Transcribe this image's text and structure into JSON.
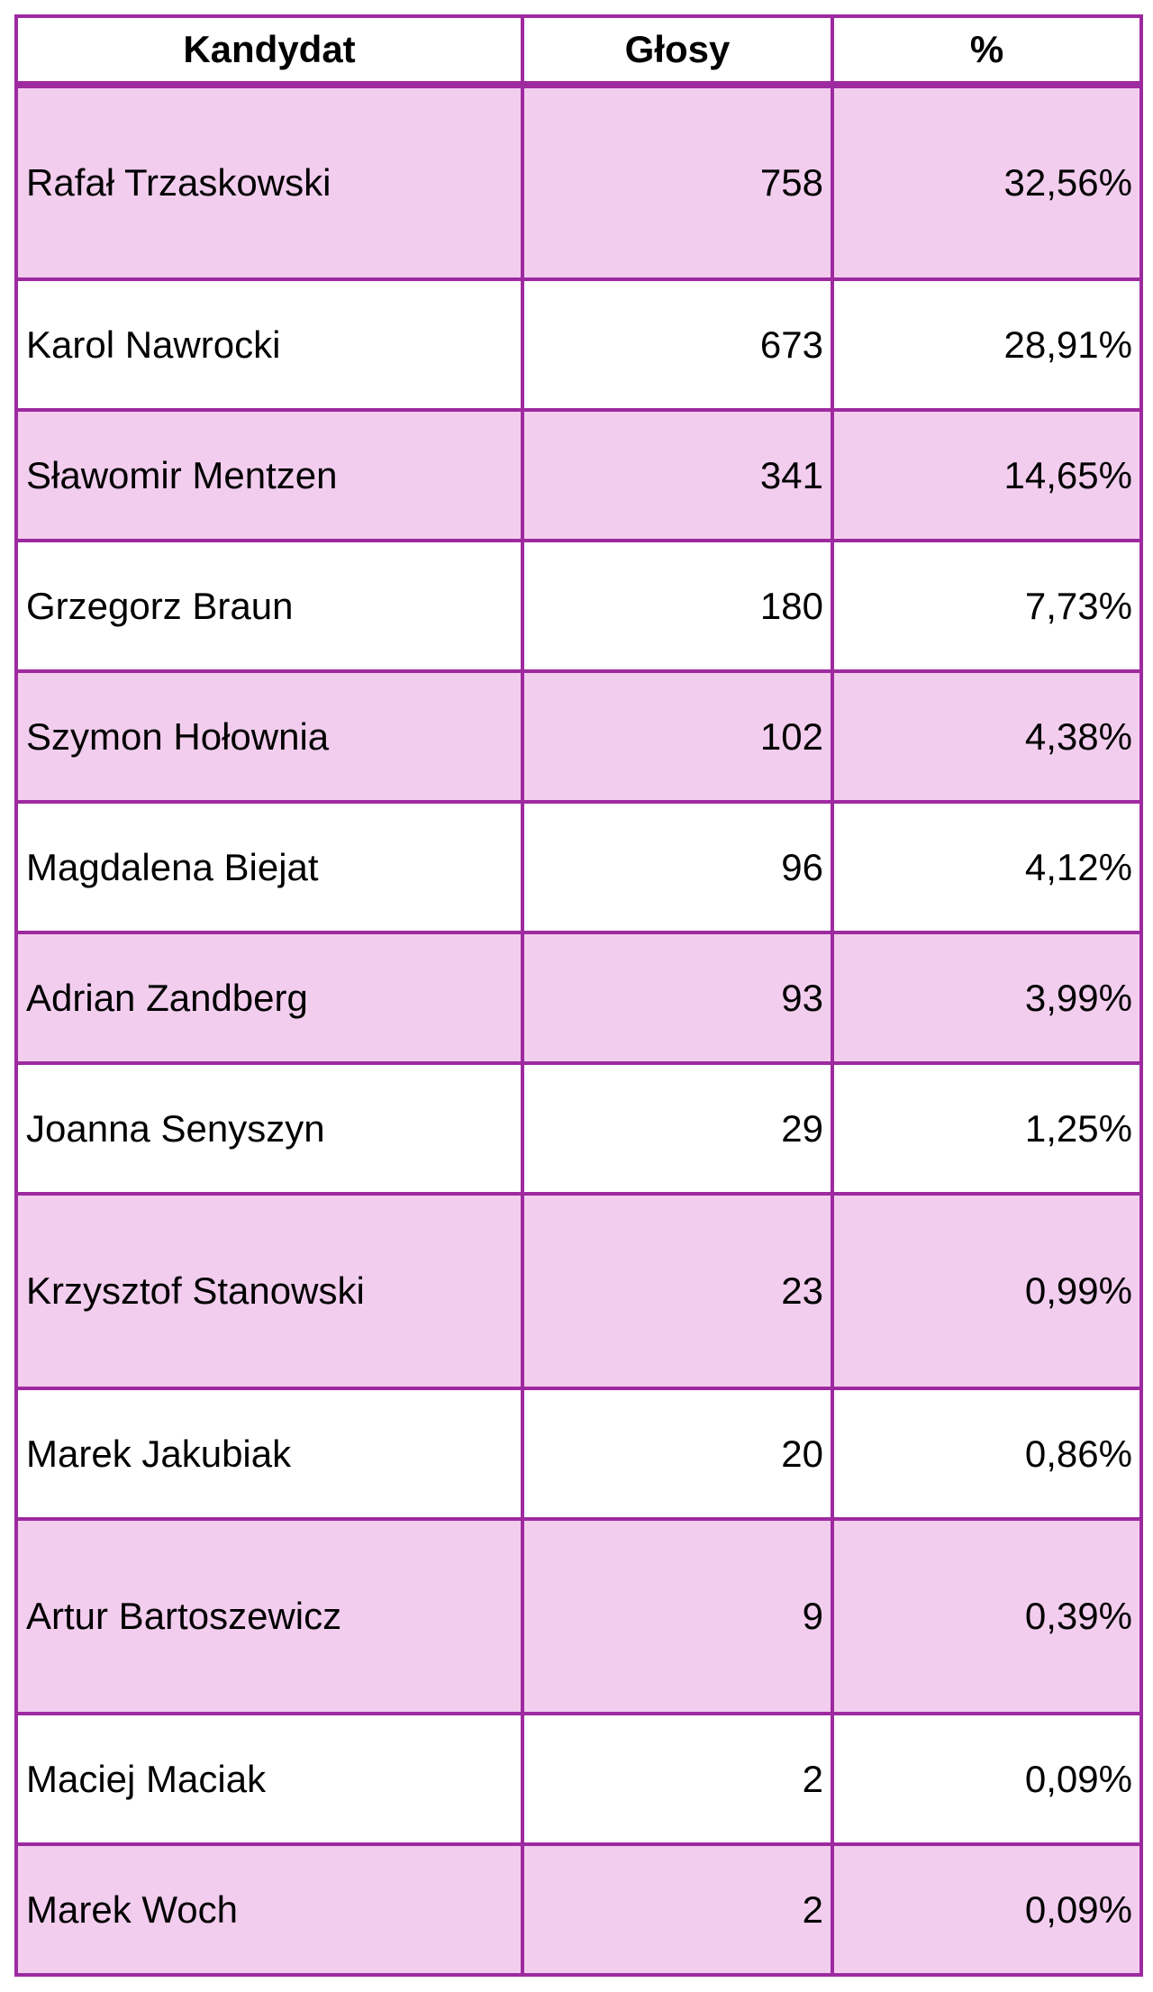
{
  "table": {
    "headers": {
      "candidate": "Kandydat",
      "votes": "Głosy",
      "percent": "%"
    },
    "rows": [
      {
        "name": "Rafał Trzaskowski",
        "votes": "758",
        "percent": "32,56%"
      },
      {
        "name": "Karol Nawrocki",
        "votes": "673",
        "percent": "28,91%"
      },
      {
        "name": "Sławomir Mentzen",
        "votes": "341",
        "percent": "14,65%"
      },
      {
        "name": "Grzegorz Braun",
        "votes": "180",
        "percent": "7,73%"
      },
      {
        "name": "Szymon Hołownia",
        "votes": "102",
        "percent": "4,38%"
      },
      {
        "name": "Magdalena Biejat",
        "votes": "96",
        "percent": "4,12%"
      },
      {
        "name": "Adrian Zandberg",
        "votes": "93",
        "percent": "3,99%"
      },
      {
        "name": "Joanna Senyszyn",
        "votes": "29",
        "percent": "1,25%"
      },
      {
        "name": "Krzysztof Stanowski",
        "votes": "23",
        "percent": "0,99%"
      },
      {
        "name": "Marek Jakubiak",
        "votes": "20",
        "percent": "0,86%"
      },
      {
        "name": "Artur Bartoszewicz",
        "votes": "9",
        "percent": "0,39%"
      },
      {
        "name": "Maciej Maciak",
        "votes": "2",
        "percent": "0,09%"
      },
      {
        "name": "Marek Woch",
        "votes": "2",
        "percent": "0,09%"
      }
    ]
  },
  "colors": {
    "border": "#9e2aa0",
    "row_shade": "#f2cdee",
    "row_plain": "#ffffff"
  }
}
